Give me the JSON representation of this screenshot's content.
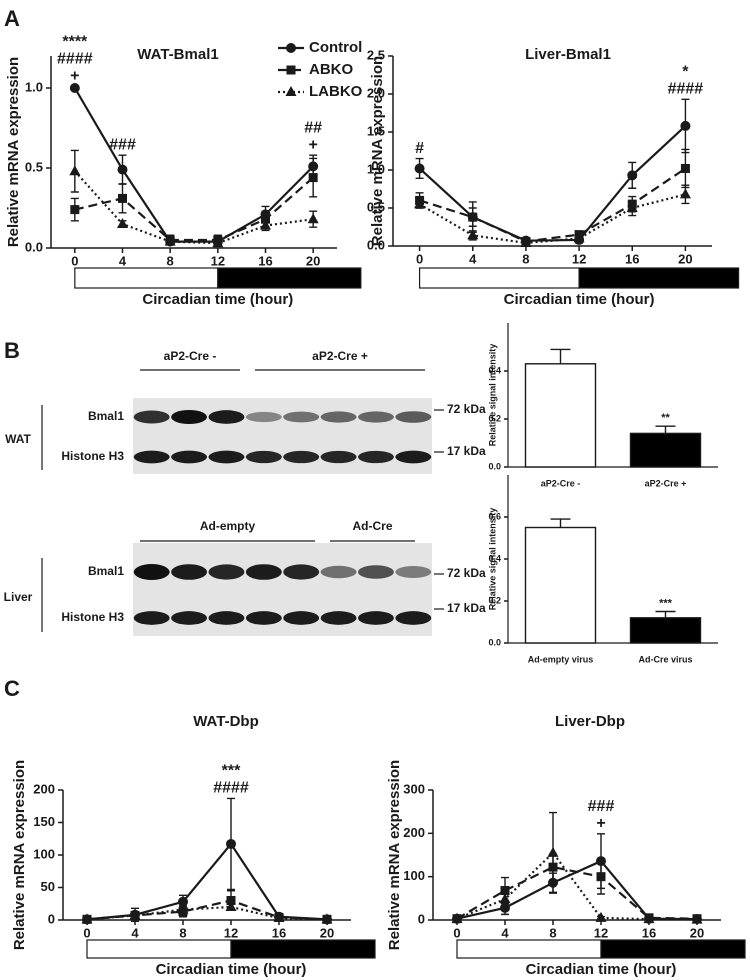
{
  "panel_labels": [
    "A",
    "B",
    "C"
  ],
  "chart_data": [
    {
      "type": "line",
      "title": "WAT-Bmal1",
      "y_label": "Relative mRNA expression",
      "x_label": "Circadian time (hour)",
      "x": [
        0,
        4,
        8,
        12,
        16,
        20
      ],
      "xlim": [
        -2,
        22
      ],
      "xticks": [
        0,
        4,
        8,
        12,
        16,
        20
      ],
      "ylim": [
        0,
        1.2
      ],
      "yticks": [
        {
          "value": 0,
          "label": "0.0"
        },
        0.5,
        {
          "value": 1,
          "label": "1.0"
        }
      ],
      "phases": [
        {
          "start": 0,
          "end": 12,
          "color": "#ffffff"
        },
        {
          "start": 12,
          "end": 24,
          "color": "#000000"
        }
      ],
      "legend": "top-right",
      "series": [
        {
          "name": "Control",
          "color": "#1a1a1a",
          "marker": "circle",
          "dash": "solid",
          "values": [
            1.0,
            0.49,
            0.04,
            0.04,
            0.21,
            0.51
          ],
          "errors": [
            0.01,
            0.09,
            0.02,
            0.02,
            0.05,
            0.07
          ]
        },
        {
          "name": "ABKO",
          "color": "#1a1a1a",
          "marker": "square",
          "dash": "dashed",
          "values": [
            0.24,
            0.31,
            0.05,
            0.05,
            0.18,
            0.44
          ],
          "errors": [
            0.07,
            0.09,
            0.03,
            0.03,
            0.05,
            0.12
          ]
        },
        {
          "name": "LABKO",
          "color": "#1a1a1a",
          "marker": "triangle",
          "dash": "dotted",
          "values": [
            0.48,
            0.15,
            0.04,
            0.03,
            0.14,
            0.18
          ],
          "errors": [
            0.13,
            0.02,
            0.02,
            0.02,
            0.03,
            0.05
          ]
        }
      ],
      "annotations": [
        {
          "x": 0,
          "lines": [
            "****",
            "####",
            "+"
          ]
        },
        {
          "x": 4,
          "lines": [
            "###"
          ]
        },
        {
          "x": 20,
          "lines": [
            "##",
            "+"
          ]
        }
      ]
    },
    {
      "type": "line",
      "title": "Liver-Bmal1",
      "y_label": "Relative mRNA expression",
      "x_label": "Circadian time (hour)",
      "x": [
        0,
        4,
        8,
        12,
        16,
        20
      ],
      "xlim": [
        -2,
        22
      ],
      "xticks": [
        0,
        4,
        8,
        12,
        16,
        20
      ],
      "ylim": [
        0,
        2.5
      ],
      "yticks": [
        {
          "value": 0,
          "label": "0.0"
        },
        0.5,
        {
          "value": 1,
          "label": "1.0"
        },
        1.5,
        {
          "value": 2,
          "label": "2.0"
        },
        2.5
      ],
      "phases": [
        {
          "start": 0,
          "end": 12,
          "color": "#ffffff"
        },
        {
          "start": 12,
          "end": 24,
          "color": "#000000"
        }
      ],
      "series": [
        {
          "name": "Control",
          "color": "#1a1a1a",
          "marker": "circle",
          "dash": "solid",
          "values": [
            1.02,
            0.38,
            0.07,
            0.08,
            0.93,
            1.58
          ],
          "errors": [
            0.13,
            0.2,
            0.04,
            0.04,
            0.17,
            0.35
          ]
        },
        {
          "name": "ABKO",
          "color": "#1a1a1a",
          "marker": "square",
          "dash": "dashed",
          "values": [
            0.6,
            0.38,
            0.06,
            0.15,
            0.55,
            1.02
          ],
          "errors": [
            0.1,
            0.12,
            0.03,
            0.04,
            0.1,
            0.25
          ]
        },
        {
          "name": "LABKO",
          "color": "#1a1a1a",
          "marker": "triangle",
          "dash": "dotted",
          "values": [
            0.55,
            0.14,
            0.04,
            0.1,
            0.5,
            0.68
          ],
          "errors": [
            0.05,
            0.06,
            0.02,
            0.03,
            0.1,
            0.12
          ]
        }
      ],
      "annotations": [
        {
          "x": 0,
          "lines": [
            "#"
          ]
        },
        {
          "x": 20,
          "lines": [
            "*",
            "####"
          ]
        }
      ]
    },
    {
      "type": "bar",
      "y_label": "Relative signal intensity",
      "categories": [
        "aP2-Cre -",
        "aP2-Cre +"
      ],
      "values": [
        0.43,
        0.14
      ],
      "errors": [
        0.06,
        0.03
      ],
      "colors": [
        "#ffffff",
        "#000000"
      ],
      "ylim": [
        0,
        0.6
      ],
      "yticks": [
        {
          "value": 0,
          "label": "0.0"
        },
        0.2,
        0.4
      ],
      "annotations": [
        {
          "index": 1,
          "lines": [
            "**"
          ]
        }
      ]
    },
    {
      "type": "bar",
      "y_label": "Relative signal intensity",
      "categories": [
        "Ad-empty virus",
        "Ad-Cre virus"
      ],
      "values": [
        0.55,
        0.12
      ],
      "errors": [
        0.04,
        0.03
      ],
      "colors": [
        "#ffffff",
        "#000000"
      ],
      "ylim": [
        0,
        0.8
      ],
      "yticks": [
        {
          "value": 0,
          "label": "0.0"
        },
        0.2,
        0.4,
        0.6
      ],
      "annotations": [
        {
          "index": 1,
          "lines": [
            "***"
          ]
        }
      ]
    },
    {
      "type": "line",
      "title": "WAT-Dbp",
      "y_label": "Relative mRNA expression",
      "x_label": "Circadian time (hour)",
      "x": [
        0,
        4,
        8,
        12,
        16,
        20
      ],
      "xlim": [
        -2,
        22
      ],
      "xticks": [
        0,
        4,
        8,
        12,
        16,
        20
      ],
      "ylim": [
        0,
        200
      ],
      "yticks": [
        0,
        50,
        100,
        150,
        200
      ],
      "phases": [
        {
          "start": 0,
          "end": 12,
          "color": "#ffffff"
        },
        {
          "start": 12,
          "end": 24,
          "color": "#000000"
        }
      ],
      "series": [
        {
          "name": "Control",
          "color": "#1a1a1a",
          "marker": "circle",
          "dash": "solid",
          "values": [
            1,
            8,
            28,
            117,
            5,
            1
          ],
          "errors": [
            2,
            10,
            10,
            70,
            3,
            1
          ]
        },
        {
          "name": "ABKO",
          "color": "#1a1a1a",
          "marker": "square",
          "dash": "dashed",
          "values": [
            1,
            7,
            13,
            30,
            4,
            1
          ],
          "errors": [
            1,
            5,
            8,
            15,
            2,
            1
          ]
        },
        {
          "name": "LABKO",
          "color": "#1a1a1a",
          "marker": "triangle",
          "dash": "dotted",
          "values": [
            1,
            7,
            16,
            20,
            3,
            1
          ],
          "errors": [
            1,
            4,
            5,
            5,
            2,
            1
          ]
        }
      ],
      "annotations": [
        {
          "x": 12,
          "lines": [
            "***",
            "####"
          ]
        }
      ]
    },
    {
      "type": "line",
      "title": "Liver-Dbp",
      "y_label": "Relative mRNA expression",
      "x_label": "Circadian time (hour)",
      "x": [
        0,
        4,
        8,
        12,
        16,
        20
      ],
      "xlim": [
        -2,
        22
      ],
      "xticks": [
        0,
        4,
        8,
        12,
        16,
        20
      ],
      "ylim": [
        0,
        300
      ],
      "yticks": [
        0,
        100,
        200,
        300
      ],
      "phases": [
        {
          "start": 0,
          "end": 12,
          "color": "#ffffff"
        },
        {
          "start": 12,
          "end": 24,
          "color": "#000000"
        }
      ],
      "series": [
        {
          "name": "Control",
          "color": "#1a1a1a",
          "marker": "circle",
          "dash": "solid",
          "values": [
            3,
            28,
            86,
            136,
            3,
            2
          ],
          "errors": [
            2,
            15,
            22,
            63,
            3,
            2
          ]
        },
        {
          "name": "ABKO",
          "color": "#1a1a1a",
          "marker": "square",
          "dash": "dashed",
          "values": [
            3,
            68,
            122,
            100,
            5,
            3
          ],
          "errors": [
            2,
            30,
            30,
            40,
            3,
            2
          ]
        },
        {
          "name": "LABKO",
          "color": "#1a1a1a",
          "marker": "triangle",
          "dash": "dotted",
          "values": [
            3,
            48,
            155,
            5,
            2,
            1
          ],
          "errors": [
            2,
            15,
            93,
            3,
            2,
            1
          ]
        }
      ],
      "annotations": [
        {
          "x": 12,
          "lines": [
            "###",
            "+"
          ]
        }
      ]
    }
  ],
  "blots": [
    {
      "tissue": "WAT",
      "groups": [
        "aP2-Cre -",
        "aP2-Cre +"
      ],
      "rows": [
        "Bmal1",
        "Histone H3"
      ],
      "sizes": [
        "72 kDa",
        "17 kDa"
      ]
    },
    {
      "tissue": "Liver",
      "groups": [
        "Ad-empty",
        "Ad-Cre"
      ],
      "rows": [
        "Bmal1",
        "Histone H3"
      ],
      "sizes": [
        "72 kDa",
        "17 kDa"
      ]
    }
  ]
}
